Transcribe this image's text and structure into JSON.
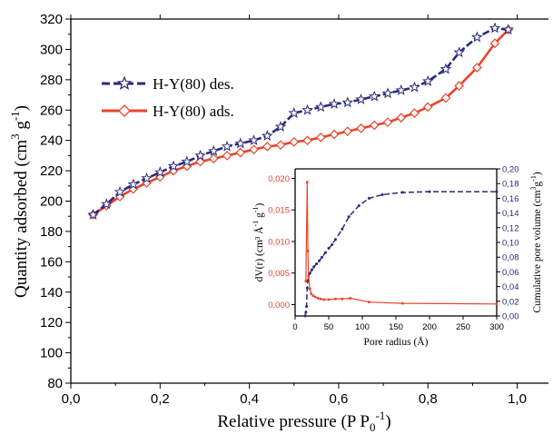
{
  "colors": {
    "des": "#2b2a7a",
    "ads": "#e8452c",
    "inset_left": "#e8452c",
    "inset_right": "#2b2a7a",
    "axis": "#000000"
  },
  "chart_data": [
    {
      "type": "line",
      "title": "",
      "xlabel": "Relative pressure (P P",
      "xlabel_sub": "0",
      "xlabel_sup": "-1",
      "xlabel_close": ")",
      "ylabel": "Quantity adsorbed (cm",
      "ylabel_sup1": "3",
      "ylabel_mid": " g",
      "ylabel_sup2": "-1",
      "ylabel_close": ")",
      "xlim": [
        0.0,
        1.07
      ],
      "ylim": [
        80,
        320
      ],
      "x_ticks": [
        "0,0",
        "0,2",
        "0,4",
        "0,6",
        "0,8",
        "1,0"
      ],
      "x_tick_values": [
        0.0,
        0.2,
        0.4,
        0.6,
        0.8,
        1.0
      ],
      "y_ticks": [
        "80",
        "100",
        "120",
        "140",
        "160",
        "180",
        "200",
        "220",
        "240",
        "260",
        "280",
        "300",
        "320"
      ],
      "y_tick_values": [
        80,
        100,
        120,
        140,
        160,
        180,
        200,
        220,
        240,
        260,
        280,
        300,
        320
      ],
      "legend_position": "top-left",
      "series": [
        {
          "name": "H-Y(80) des.",
          "marker": "star",
          "line": "dashed",
          "x": [
            0.05,
            0.08,
            0.11,
            0.14,
            0.17,
            0.2,
            0.23,
            0.26,
            0.29,
            0.32,
            0.35,
            0.38,
            0.41,
            0.44,
            0.47,
            0.5,
            0.53,
            0.56,
            0.59,
            0.62,
            0.65,
            0.68,
            0.71,
            0.74,
            0.77,
            0.8,
            0.84,
            0.87,
            0.91,
            0.95,
            0.98
          ],
          "y": [
            191,
            198,
            206,
            211,
            215,
            219,
            223,
            226,
            230,
            233,
            236,
            238,
            240,
            243,
            249,
            258,
            260,
            262,
            264,
            265,
            267,
            269,
            271,
            273,
            275,
            279,
            287,
            298,
            308,
            314,
            313
          ]
        },
        {
          "name": "H-Y(80) ads.",
          "marker": "diamond",
          "line": "solid",
          "x": [
            0.05,
            0.08,
            0.11,
            0.14,
            0.17,
            0.2,
            0.23,
            0.26,
            0.29,
            0.32,
            0.35,
            0.38,
            0.41,
            0.44,
            0.47,
            0.5,
            0.53,
            0.56,
            0.59,
            0.62,
            0.65,
            0.68,
            0.71,
            0.74,
            0.77,
            0.8,
            0.84,
            0.87,
            0.91,
            0.95,
            0.98
          ],
          "y": [
            191,
            197,
            203,
            208,
            212,
            216,
            220,
            223,
            226,
            228,
            230,
            232,
            234,
            236,
            237,
            239,
            240,
            242,
            244,
            246,
            248,
            250,
            252,
            255,
            258,
            262,
            268,
            276,
            288,
            304,
            313
          ]
        }
      ]
    },
    {
      "type": "line",
      "title": "",
      "xlabel": "Pore radius (Å)",
      "ylabel_left": "dV(r) (cm³ Å",
      "ylabel_left_sup": "-1",
      "ylabel_left_mid": " g",
      "ylabel_left_sup2": "-1",
      "ylabel_left_close": ")",
      "ylabel_right": "Cumulative pore volume (cm",
      "ylabel_right_sup": "3",
      "ylabel_right_mid": "g",
      "ylabel_right_sup2": "-1",
      "ylabel_right_close": ")",
      "xlim": [
        0,
        300
      ],
      "ylim_left": [
        -0.0018,
        0.0215
      ],
      "ylim_right": [
        0.0,
        0.2
      ],
      "x_ticks": [
        "0",
        "50",
        "100",
        "150",
        "200",
        "250",
        "300"
      ],
      "x_tick_values": [
        0,
        50,
        100,
        150,
        200,
        250,
        300
      ],
      "y_left_ticks": [
        "0,000",
        "0,005",
        "0,010",
        "0,015",
        "0,020"
      ],
      "y_left_tick_values": [
        0.0,
        0.005,
        0.01,
        0.015,
        0.02
      ],
      "y_right_ticks": [
        "0,00",
        "0,02",
        "0,04",
        "0,06",
        "0,08",
        "0,10",
        "0,12",
        "0,14",
        "0,16",
        "0,18",
        "0,20"
      ],
      "y_right_tick_values": [
        0.0,
        0.02,
        0.04,
        0.06,
        0.08,
        0.1,
        0.12,
        0.14,
        0.16,
        0.18,
        0.2
      ],
      "series": [
        {
          "name": "dV(r)",
          "axis": "left",
          "line": "solid",
          "x": [
            16,
            18,
            19,
            20,
            22,
            24,
            27,
            30,
            34,
            38,
            43,
            50,
            60,
            70,
            82,
            110,
            160,
            300
          ],
          "y": [
            0.0037,
            0.0194,
            0.0085,
            0.0045,
            0.0025,
            0.0017,
            0.0014,
            0.0012,
            0.001,
            0.0009,
            0.0008,
            0.0008,
            0.0009,
            0.0009,
            0.001,
            0.0004,
            0.0002,
            0.0001
          ]
        },
        {
          "name": "Cumulative pore volume",
          "axis": "right",
          "line": "dashed",
          "x": [
            15,
            16,
            17,
            18,
            19,
            20,
            22,
            25,
            28,
            32,
            36,
            40,
            45,
            50,
            55,
            60,
            70,
            80,
            95,
            110,
            130,
            160,
            200,
            300
          ],
          "y": [
            0.0,
            0.005,
            0.013,
            0.038,
            0.048,
            0.054,
            0.058,
            0.063,
            0.067,
            0.071,
            0.075,
            0.08,
            0.086,
            0.092,
            0.097,
            0.104,
            0.118,
            0.135,
            0.15,
            0.16,
            0.165,
            0.168,
            0.169,
            0.169
          ]
        }
      ]
    }
  ]
}
